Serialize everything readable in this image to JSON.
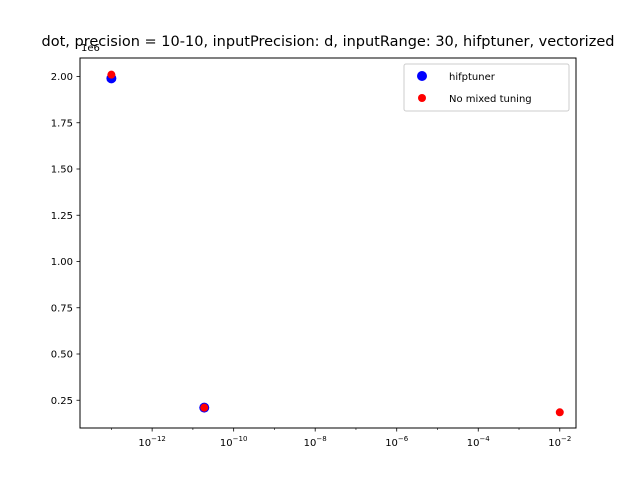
{
  "chart_data": {
    "type": "scatter",
    "title": "dot, precision = 10-10, inputPrecision: d, inputRange: 30, hifptuner, vectorized",
    "xlabel": "",
    "ylabel": "",
    "xscale": "log",
    "xlim": [
      1.7e-14,
      0.025
    ],
    "ylim": [
      100000,
      2100000
    ],
    "y_offset_label": "1e6",
    "x_ticks": [
      {
        "base": "10",
        "exp": "−12",
        "value": 1e-12
      },
      {
        "base": "10",
        "exp": "−10",
        "value": 1e-10
      },
      {
        "base": "10",
        "exp": "−8",
        "value": 1e-08
      },
      {
        "base": "10",
        "exp": "−6",
        "value": 1e-06
      },
      {
        "base": "10",
        "exp": "−4",
        "value": 0.0001
      },
      {
        "base": "10",
        "exp": "−2",
        "value": 0.01
      }
    ],
    "y_ticks": [
      {
        "label": "0.25",
        "value": 250000
      },
      {
        "label": "0.50",
        "value": 500000
      },
      {
        "label": "0.75",
        "value": 750000
      },
      {
        "label": "1.00",
        "value": 1000000
      },
      {
        "label": "1.25",
        "value": 1250000
      },
      {
        "label": "1.50",
        "value": 1500000
      },
      {
        "label": "1.75",
        "value": 1750000
      },
      {
        "label": "2.00",
        "value": 2000000
      }
    ],
    "legend_position": "top-right",
    "series": [
      {
        "name": "hifptuner",
        "color": "#0000ff",
        "points": [
          {
            "x": 1e-13,
            "y": 1990000
          },
          {
            "x": 1.9e-11,
            "y": 210000
          }
        ]
      },
      {
        "name": "No mixed tuning",
        "color": "#ff0000",
        "points": [
          {
            "x": 1e-13,
            "y": 2010000
          },
          {
            "x": 1.9e-11,
            "y": 210000
          },
          {
            "x": 0.01,
            "y": 185000
          }
        ]
      }
    ]
  }
}
